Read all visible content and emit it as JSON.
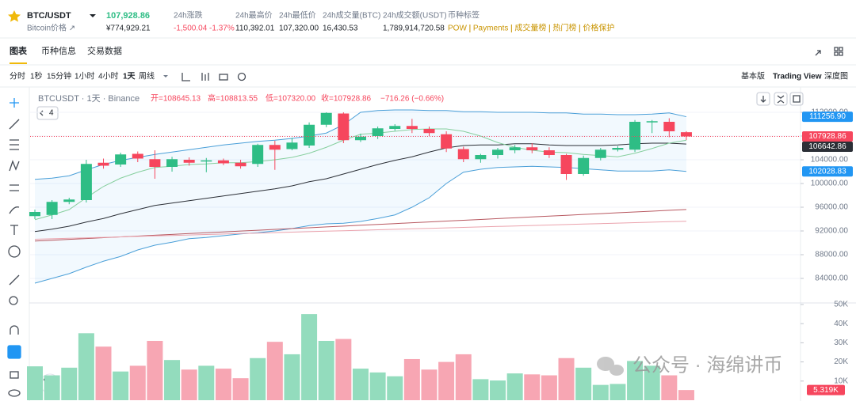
{
  "header": {
    "symbol": "BTC/USDT",
    "price": "107,928.86",
    "subtitle": "Bitcoin价格 ↗",
    "cny": "¥774,929.21",
    "stats": [
      {
        "label": "24h涨跌",
        "value": "-1,500.04 -1.37%"
      },
      {
        "label": "24h最高价",
        "value": "110,392.01"
      },
      {
        "label": "24h最低价",
        "value": "107,320.00"
      },
      {
        "label": "24h成交量(BTC)",
        "value": "16,430.53"
      },
      {
        "label": "24h成交额(USDT)",
        "value": "1,789,914,720.58"
      }
    ],
    "tags_label": "币种标签",
    "tags": [
      "POW",
      "Payments",
      "成交量榜",
      "热门榜",
      "价格保护"
    ]
  },
  "tabs": [
    "图表",
    "币种信息",
    "交易数据"
  ],
  "intervals": [
    "分时",
    "1秒",
    "15分钟",
    "1小时",
    "4小时",
    "1天",
    "周线"
  ],
  "views": [
    "基本版",
    "Trading View",
    "深度图"
  ],
  "chart": {
    "type": "candlestick",
    "title": "BTCUSDT · 1天 · Binance",
    "ohlc_labels": [
      "开=108645.13",
      "高=108813.55",
      "低=107320.00",
      "收=107928.86"
    ],
    "change": "−716.26 (−0.66%)",
    "indicator_count": "4",
    "up_color": "#2ebd85",
    "down_color": "#f6465d",
    "up_volume_color": "#93dcbd",
    "down_volume_color": "#f7a6b3",
    "open": [
      94500,
      94700,
      96900,
      97200,
      103500,
      103200,
      105000,
      104100,
      102800,
      104000,
      103700,
      103900,
      103500,
      103300,
      106500,
      105800,
      106400,
      109900,
      111800,
      107300,
      108000,
      109200,
      109700,
      109200,
      108300,
      105800,
      104100,
      104800,
      105600,
      106100,
      105600,
      104800,
      101600,
      104300,
      105700,
      105700,
      110300,
      110400,
      108645.13
    ],
    "high": [
      95600,
      97200,
      97600,
      104000,
      104200,
      105200,
      105400,
      105600,
      104500,
      104400,
      104300,
      104200,
      104000,
      106700,
      107200,
      107700,
      110300,
      112000,
      112000,
      108400,
      109600,
      110000,
      110900,
      109600,
      108800,
      106200,
      105000,
      106000,
      106500,
      106800,
      106100,
      105000,
      104700,
      106000,
      106300,
      110700,
      110700,
      111000,
      108813.55
    ],
    "low": [
      94000,
      94000,
      96500,
      96800,
      102500,
      102800,
      103600,
      100800,
      102000,
      103000,
      101900,
      103100,
      102500,
      102800,
      102300,
      105600,
      106000,
      109500,
      106800,
      107000,
      107500,
      108900,
      108500,
      108000,
      105300,
      103600,
      103500,
      104200,
      105100,
      105100,
      104300,
      100600,
      101300,
      103900,
      105400,
      105300,
      108500,
      107800,
      107320
    ],
    "close": [
      95200,
      96900,
      97300,
      103300,
      103000,
      104900,
      104200,
      102800,
      104100,
      103500,
      103900,
      103400,
      102900,
      106500,
      105700,
      106900,
      109900,
      111900,
      107300,
      107900,
      109300,
      109700,
      109200,
      108500,
      105900,
      104100,
      104800,
      105700,
      106100,
      105600,
      104800,
      101600,
      104300,
      105700,
      106000,
      110400,
      110500,
      108800,
      107928.86
    ],
    "volume": [
      17700,
      13000,
      17000,
      35000,
      28000,
      15000,
      18000,
      31000,
      21000,
      16000,
      18000,
      16500,
      11500,
      22000,
      30500,
      24000,
      45000,
      31000,
      32000,
      16500,
      14500,
      12500,
      21500,
      16000,
      20000,
      24000,
      11000,
      10300,
      14000,
      13500,
      13000,
      22000,
      17000,
      8000,
      8500,
      20500,
      18000,
      13000,
      5319
    ],
    "lines": [
      {
        "color": "#4a9fd8",
        "values": [
          100700,
          100900,
          101300,
          102300,
          103200,
          103900,
          104400,
          104900,
          105300,
          105700,
          106100,
          106500,
          106800,
          107100,
          107300,
          107600,
          108000,
          108500,
          109900,
          112000,
          112300,
          112400,
          112400,
          112300,
          112300,
          112100,
          112100,
          112000,
          112000,
          112000,
          111900,
          111900,
          111700,
          111700,
          111600,
          111600,
          111700,
          111900,
          111256.9
        ]
      },
      {
        "color": "#4a9fd8",
        "values": [
          83200,
          84000,
          84800,
          85900,
          86900,
          87700,
          88800,
          89600,
          90100,
          90700,
          90900,
          91200,
          91500,
          91700,
          92000,
          92400,
          92900,
          93200,
          93300,
          93600,
          94100,
          94700,
          96000,
          97600,
          100000,
          101900,
          102400,
          102700,
          102800,
          102900,
          102800,
          102700,
          102500,
          102300,
          102100,
          102100,
          102100,
          102300,
          102028.83
        ]
      },
      {
        "color": "#2b2f36",
        "values": [
          91900,
          92300,
          92800,
          93500,
          94100,
          94900,
          95600,
          96300,
          96700,
          97100,
          97500,
          97900,
          98300,
          98700,
          99100,
          99600,
          100300,
          100800,
          101600,
          102400,
          103200,
          103900,
          104500,
          105300,
          106000,
          106400,
          106500,
          106500,
          106700,
          106700,
          106500,
          106400,
          106400,
          106400,
          106500,
          106700,
          106800,
          106800,
          106642.86
        ]
      },
      {
        "color": "#86cf9e",
        "values": [
          93900,
          94700,
          95600,
          97600,
          99500,
          100900,
          101900,
          102700,
          102900,
          103200,
          103300,
          103500,
          103500,
          103700,
          104000,
          104400,
          105100,
          106100,
          107300,
          108300,
          108500,
          108800,
          109100,
          109200,
          109200,
          108800,
          108000,
          106900,
          106100,
          105600,
          105300,
          105200,
          104900,
          104700,
          104500,
          105100,
          105900,
          106800,
          107300
        ]
      },
      {
        "color": "#b85860",
        "values": [
          90300,
          90440,
          90580,
          90720,
          90860,
          91000,
          91140,
          91280,
          91420,
          91560,
          91700,
          91840,
          91980,
          92120,
          92260,
          92400,
          92540,
          92680,
          92820,
          92960,
          93100,
          93240,
          93380,
          93520,
          93660,
          93800,
          93940,
          94080,
          94220,
          94360,
          94500,
          94640,
          94780,
          94920,
          95060,
          95200,
          95340,
          95480,
          95620
        ]
      },
      {
        "color": "#eba3ad",
        "values": [
          90600,
          90680,
          90760,
          90840,
          90920,
          91000,
          91080,
          91160,
          91240,
          91320,
          91400,
          91480,
          91560,
          91640,
          91720,
          91800,
          91880,
          91960,
          92040,
          92120,
          92200,
          92280,
          92360,
          92440,
          92520,
          92600,
          92680,
          92760,
          92840,
          92920,
          93000,
          93080,
          93160,
          93240,
          93320,
          93400,
          93480,
          93560,
          93640
        ]
      }
    ],
    "ylim": [
      80000,
      115600
    ],
    "yticks": [
      {
        "value": 84000,
        "label": "84000.00"
      },
      {
        "value": 88000,
        "label": "88000.00"
      },
      {
        "value": 92000,
        "label": "92000.00"
      },
      {
        "value": 96000,
        "label": "96000.00"
      },
      {
        "value": 100000,
        "label": "100000.00"
      },
      {
        "value": 104000,
        "label": "104000.00"
      },
      {
        "value": 108000,
        "label": "108000.00"
      },
      {
        "value": 112000,
        "label": "112000.00"
      }
    ],
    "volume_ylim": [
      0,
      50000
    ],
    "volume_ticks": [
      {
        "value": 10000,
        "label": "10K"
      },
      {
        "value": 20000,
        "label": "20K"
      },
      {
        "value": 30000,
        "label": "30K"
      },
      {
        "value": 40000,
        "label": "40K"
      },
      {
        "value": 50000,
        "label": "50K"
      }
    ],
    "price_tags": [
      {
        "value": 111256.9,
        "label": "111256.90",
        "color": "#2196f3"
      },
      {
        "value": 107928.86,
        "label": "107928.86",
        "color": "#f6465d"
      },
      {
        "value": 106642.86,
        "label": "106642.86",
        "color": "#2b2f36"
      },
      {
        "value": 102028.83,
        "label": "102028.83",
        "color": "#2196f3"
      }
    ],
    "volume_tag": {
      "value": 5319,
      "label": "5.319K",
      "color": "#f6465d"
    },
    "watermark": "公众号 · 海绵讲币"
  }
}
